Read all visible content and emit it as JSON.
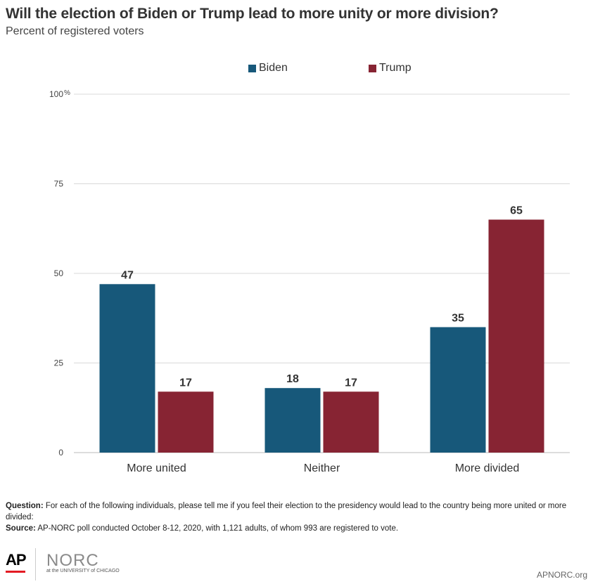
{
  "header": {
    "title": "Will the election of Biden or Trump lead to more unity or more division?",
    "subtitle": "Percent of registered voters"
  },
  "chart_data": {
    "type": "bar",
    "categories": [
      "More united",
      "Neither",
      "More divided"
    ],
    "series": [
      {
        "name": "Biden",
        "values": [
          47,
          18,
          35
        ],
        "color": "#17587a"
      },
      {
        "name": "Trump",
        "values": [
          17,
          17,
          65
        ],
        "color": "#872433"
      }
    ],
    "ylim": [
      0,
      100
    ],
    "yticks": [
      0,
      25,
      50,
      75,
      100
    ],
    "ytick_labels": [
      "0",
      "25",
      "50",
      "75",
      "100"
    ],
    "y_unit_symbol": "%",
    "grid": true,
    "legend_position": "top-center"
  },
  "notes": {
    "question_label": "Question:",
    "question_text": " For each of the following individuals, please tell me if you feel their election to the presidency would lead to the country being more united or more divided:",
    "source_label": "Source:",
    "source_text": " AP-NORC poll conducted October 8-12, 2020, with 1,121 adults, of whom 993 are registered to vote."
  },
  "footer": {
    "ap_logo": "AP",
    "norc_logo": "NORC",
    "norc_sub": "at the UNIVERSITY of CHICAGO",
    "site": "APNORC.org"
  }
}
